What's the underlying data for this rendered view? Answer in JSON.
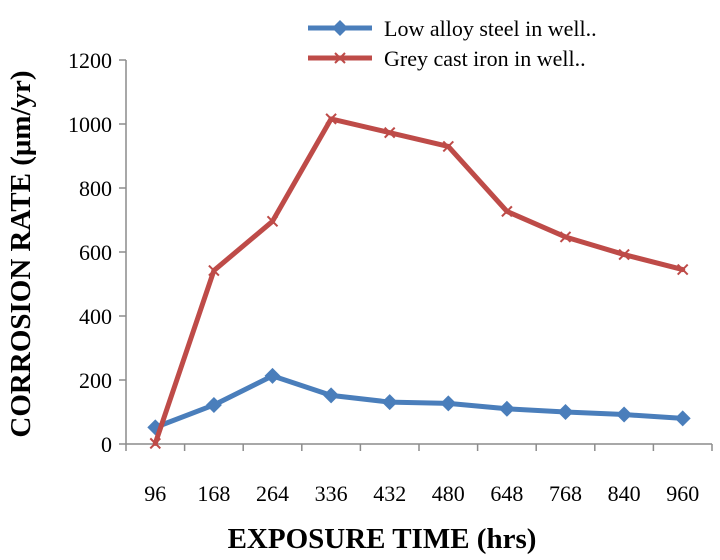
{
  "chart_data": {
    "type": "line",
    "categories": [
      "96",
      "168",
      "264",
      "336",
      "432",
      "480",
      "648",
      "768",
      "840",
      "960"
    ],
    "series": [
      {
        "name": "Low alloy steel in well..",
        "color": "#4a7ebb",
        "marker": "diamond",
        "values": [
          52,
          122,
          213,
          152,
          131,
          127,
          110,
          100,
          92,
          80
        ]
      },
      {
        "name": "Grey cast iron in well..",
        "color": "#be4b48",
        "marker": "x",
        "values": [
          2,
          542,
          696,
          1016,
          973,
          930,
          727,
          647,
          592,
          545
        ]
      }
    ],
    "xlabel": "EXPOSURE TIME (hrs)",
    "ylabel": "CORROSION RATE (μm/yr)",
    "ylim": [
      0,
      1200
    ],
    "yticks": [
      0,
      200,
      400,
      600,
      800,
      1000,
      1200
    ],
    "grid": false,
    "legend": "top-right"
  }
}
